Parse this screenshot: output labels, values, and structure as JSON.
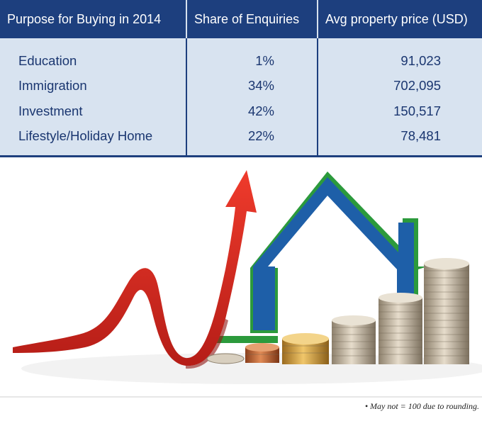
{
  "chart_data": {
    "type": "table",
    "columns": [
      "Purpose for Buying in 2014",
      "Share of Enquiries",
      "Avg property price (USD)"
    ],
    "rows": [
      {
        "purpose": "Education",
        "share": "1%",
        "price": "91,023"
      },
      {
        "purpose": "Immigration",
        "share": "34%",
        "price": "702,095"
      },
      {
        "purpose": "Investment",
        "share": "42%",
        "price": "150,517"
      },
      {
        "purpose": "Lifestyle/Holiday Home",
        "share": "22%",
        "price": "78,481"
      }
    ],
    "share_values": [
      1,
      34,
      42,
      22
    ],
    "price_values": [
      91023,
      702095,
      150517,
      78481
    ]
  },
  "footnote": "• May not = 100 due to rounding.",
  "colors": {
    "header_bg": "#1d3f7e",
    "row_bg": "#d8e3f0",
    "row_text": "#1a3670",
    "arrow_red": "#d42a22",
    "house_blue": "#1e5fa8",
    "house_green": "#3aa63f",
    "coin": "#c9b79a"
  },
  "illustration": {
    "icons": [
      "rising-arrow-icon",
      "house-outline-icon",
      "coin-stack-icon"
    ]
  }
}
